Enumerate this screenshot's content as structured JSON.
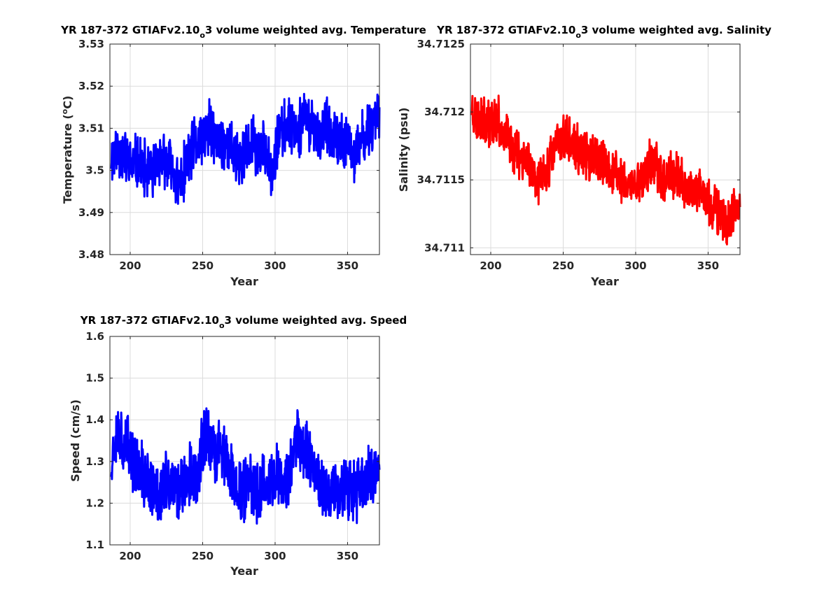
{
  "figure": {
    "background": "#ffffff"
  },
  "chart_data": [
    {
      "type": "line",
      "title": "YR 187-372 GTIAFv2.10_o3 volume weighted avg. Temperature",
      "title_parts": {
        "main": "YR 187-372 GTIAFv2.10",
        "sub": "o",
        "tail": "3 volume weighted avg. Temperature"
      },
      "xlabel": "Year",
      "ylabel": "Temperature (°C)",
      "ylabel_parts": {
        "pre": "Temperature (",
        "sup": "o",
        "post": "C)"
      },
      "xlim": [
        186,
        372
      ],
      "ylim": [
        3.48,
        3.53
      ],
      "xticks": [
        200,
        250,
        300,
        350
      ],
      "yticks": [
        3.48,
        3.49,
        3.5,
        3.51,
        3.52,
        3.53
      ],
      "xtick_labels": [
        "200",
        "250",
        "300",
        "350"
      ],
      "ytick_labels": [
        "3.48",
        "3.49",
        "3.5",
        "3.51",
        "3.52",
        "3.53"
      ],
      "grid": true,
      "series": [
        {
          "color": "#0000ff",
          "x": [
            187,
            190,
            195,
            200,
            205,
            210,
            215,
            220,
            225,
            230,
            233,
            236,
            240,
            245,
            250,
            255,
            260,
            265,
            270,
            275,
            280,
            285,
            290,
            295,
            298,
            302,
            305,
            310,
            315,
            320,
            325,
            330,
            335,
            340,
            345,
            350,
            355,
            360,
            365,
            368,
            372
          ],
          "y": [
            3.503,
            3.505,
            3.504,
            3.501,
            3.502,
            3.5,
            3.499,
            3.503,
            3.501,
            3.5,
            3.496,
            3.498,
            3.503,
            3.506,
            3.508,
            3.51,
            3.506,
            3.507,
            3.505,
            3.502,
            3.504,
            3.506,
            3.504,
            3.505,
            3.499,
            3.508,
            3.509,
            3.512,
            3.51,
            3.512,
            3.511,
            3.508,
            3.51,
            3.507,
            3.507,
            3.506,
            3.503,
            3.507,
            3.51,
            3.512,
            3.515
          ]
        }
      ]
    },
    {
      "type": "line",
      "title": "YR 187-372 GTIAFv2.10_o3 volume weighted avg. Salinity",
      "title_parts": {
        "main": "YR 187-372 GTIAFv2.10",
        "sub": "o",
        "tail": "3 volume weighted avg. Salinity"
      },
      "xlabel": "Year",
      "ylabel": "Salinity (psu)",
      "xlim": [
        186,
        372
      ],
      "ylim": [
        34.71095,
        34.7125
      ],
      "xticks": [
        200,
        250,
        300,
        350
      ],
      "yticks": [
        34.711,
        34.7115,
        34.712,
        34.7125
      ],
      "xtick_labels": [
        "200",
        "250",
        "300",
        "350"
      ],
      "ytick_labels": [
        "34.711",
        "34.7115",
        "34.712",
        "34.7125"
      ],
      "grid": true,
      "series": [
        {
          "color": "#ff0000",
          "x": [
            187,
            190,
            195,
            200,
            205,
            210,
            215,
            220,
            225,
            230,
            235,
            240,
            245,
            250,
            255,
            260,
            265,
            270,
            275,
            280,
            285,
            290,
            295,
            300,
            305,
            310,
            315,
            320,
            325,
            330,
            335,
            340,
            345,
            350,
            355,
            360,
            365,
            368,
            372
          ],
          "y": [
            34.71205,
            34.71195,
            34.71198,
            34.71192,
            34.71193,
            34.71182,
            34.71175,
            34.7117,
            34.71165,
            34.71155,
            34.71148,
            34.71162,
            34.71175,
            34.71182,
            34.71178,
            34.71172,
            34.71168,
            34.71165,
            34.71162,
            34.7116,
            34.71155,
            34.71152,
            34.71145,
            34.71148,
            34.71152,
            34.71162,
            34.71158,
            34.71152,
            34.71155,
            34.7115,
            34.71145,
            34.71142,
            34.71138,
            34.71135,
            34.71128,
            34.71122,
            34.71118,
            34.71125,
            34.7113
          ]
        }
      ]
    },
    {
      "type": "line",
      "title": "YR 187-372 GTIAFv2.10_o3 volume weighted avg. Speed",
      "title_parts": {
        "main": "YR 187-372 GTIAFv2.10",
        "sub": "o",
        "tail": "3 volume weighted avg. Speed"
      },
      "xlabel": "Year",
      "ylabel": "Speed (cm/s)",
      "xlim": [
        186,
        372
      ],
      "ylim": [
        1.1,
        1.6
      ],
      "xticks": [
        200,
        250,
        300,
        350
      ],
      "yticks": [
        1.1,
        1.2,
        1.3,
        1.4,
        1.5,
        1.6
      ],
      "xtick_labels": [
        "200",
        "250",
        "300",
        "350"
      ],
      "ytick_labels": [
        "1.1",
        "1.2",
        "1.3",
        "1.4",
        "1.5",
        "1.6"
      ],
      "grid": true,
      "series": [
        {
          "color": "#0000ff",
          "x": [
            187,
            190,
            195,
            200,
            205,
            210,
            215,
            220,
            225,
            230,
            235,
            240,
            245,
            250,
            253,
            258,
            262,
            267,
            272,
            277,
            282,
            287,
            292,
            297,
            302,
            307,
            312,
            315,
            320,
            325,
            330,
            335,
            340,
            345,
            350,
            355,
            360,
            365,
            372
          ],
          "y": [
            1.3,
            1.38,
            1.35,
            1.32,
            1.28,
            1.26,
            1.24,
            1.22,
            1.25,
            1.23,
            1.24,
            1.27,
            1.26,
            1.33,
            1.38,
            1.3,
            1.35,
            1.28,
            1.25,
            1.23,
            1.24,
            1.22,
            1.26,
            1.25,
            1.27,
            1.24,
            1.3,
            1.37,
            1.34,
            1.3,
            1.26,
            1.22,
            1.23,
            1.21,
            1.24,
            1.22,
            1.25,
            1.26,
            1.28
          ]
        }
      ]
    }
  ]
}
